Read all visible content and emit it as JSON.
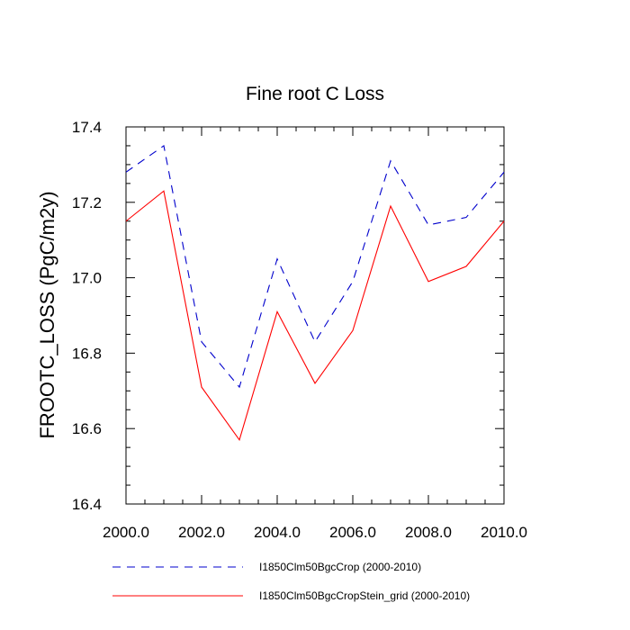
{
  "chart_data": {
    "type": "line",
    "title": "Fine root C Loss",
    "xlabel": "",
    "ylabel": "FROOTC_LOSS  (PgC/m2y)",
    "x": [
      2000,
      2001,
      2002,
      2003,
      2004,
      2005,
      2006,
      2007,
      2008,
      2009,
      2010
    ],
    "xlim": [
      2000,
      2010
    ],
    "ylim": [
      16.4,
      17.4
    ],
    "xticks": [
      "2000.0",
      "2002.0",
      "2004.0",
      "2006.0",
      "2008.0",
      "2010.0"
    ],
    "yticks": [
      "16.4",
      "16.6",
      "16.8",
      "17.0",
      "17.2",
      "17.4"
    ],
    "grid": false,
    "legend_position": "bottom",
    "series": [
      {
        "name": "I1850Clm50BgcCrop (2000-2010)",
        "color": "#0000cc",
        "dash": "dashed",
        "values": [
          17.28,
          17.35,
          16.83,
          16.71,
          17.05,
          16.83,
          16.99,
          17.31,
          17.14,
          17.16,
          17.28
        ]
      },
      {
        "name": "I1850Clm50BgcCropStein_grid (2000-2010)",
        "color": "#ff0000",
        "dash": "solid",
        "values": [
          17.15,
          17.23,
          16.71,
          16.57,
          16.91,
          16.72,
          16.86,
          17.19,
          16.99,
          17.03,
          17.15
        ]
      }
    ]
  }
}
